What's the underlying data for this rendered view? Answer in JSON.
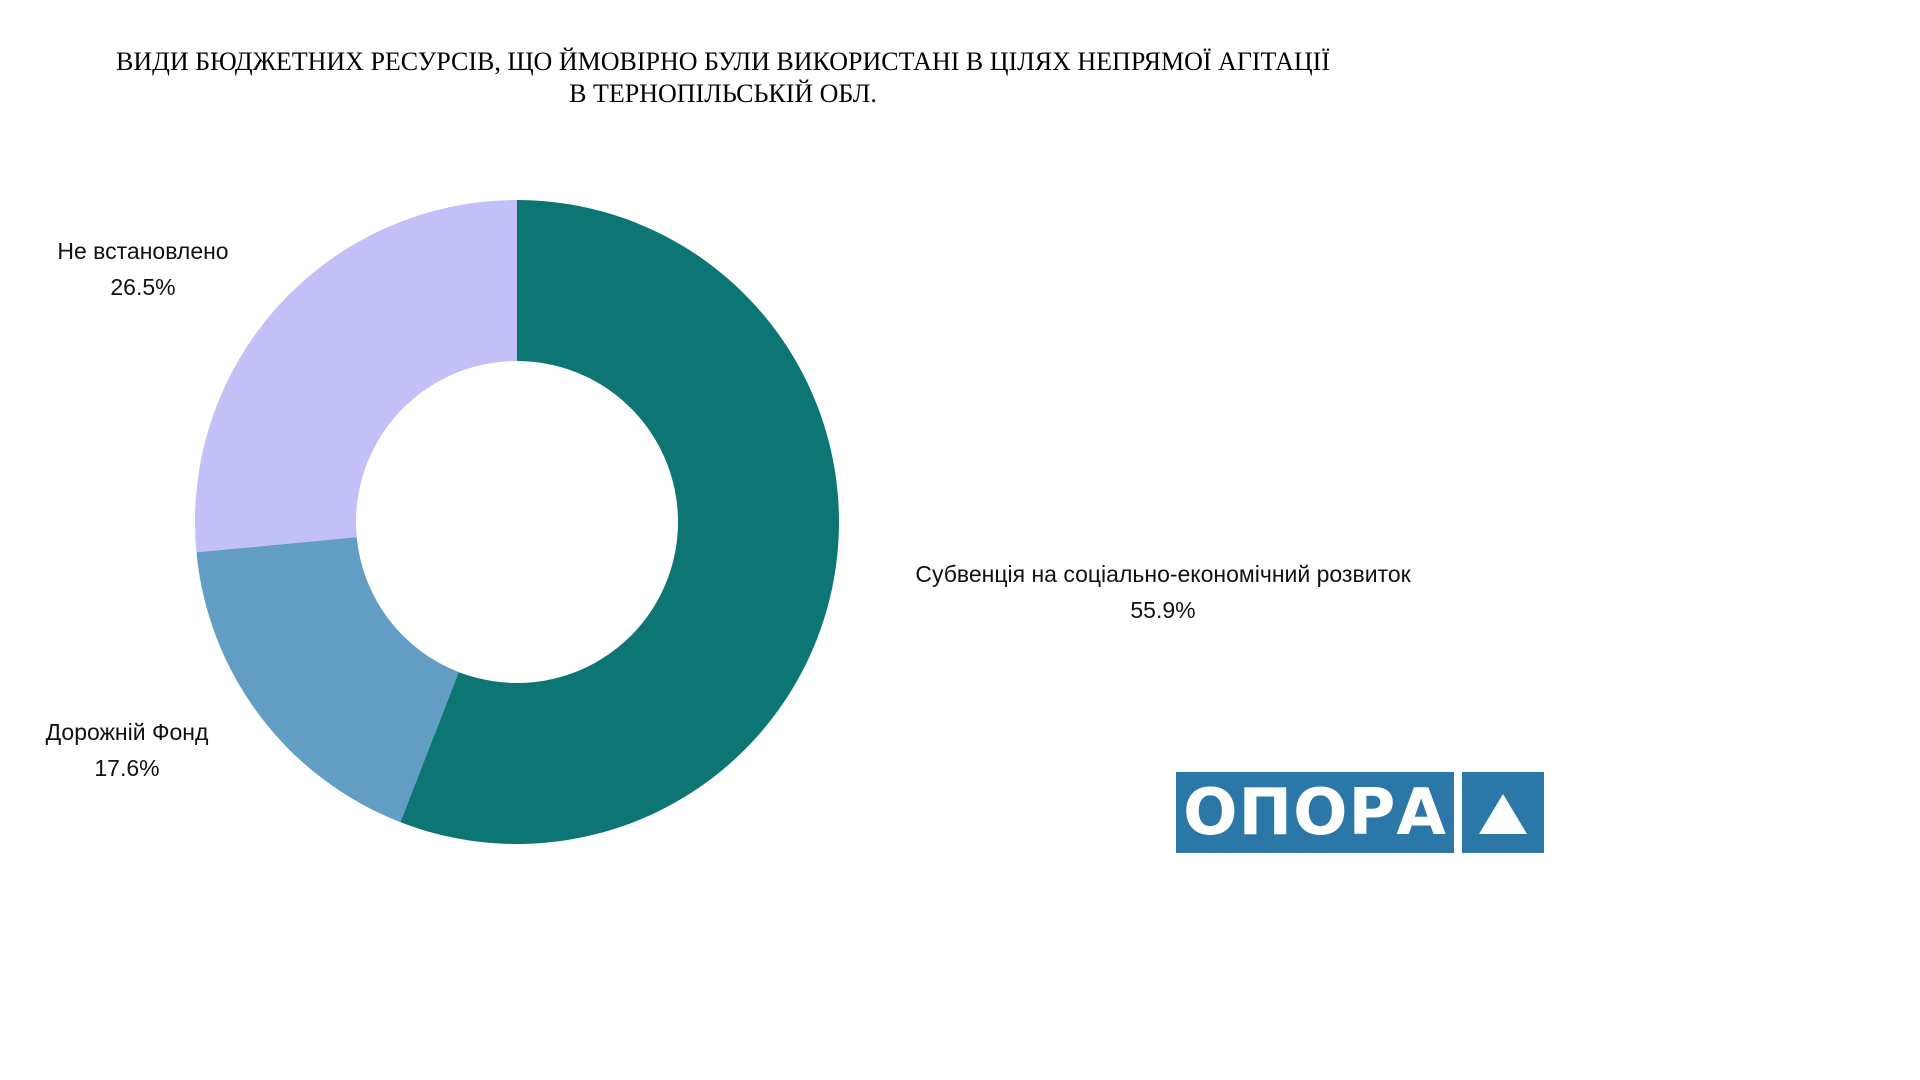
{
  "chart_data": {
    "type": "pie",
    "variant": "donut",
    "title_lines": [
      "ВИДИ БЮДЖЕТНИХ РЕСУРСІВ, ЩО ЙМОВІРНО БУЛИ ВИКОРИСТАНІ В ЦІЛЯХ НЕПРЯМОЇ АГІТАЦІЇ",
      "В ТЕРНОПІЛЬСЬКІЙ ОБЛ."
    ],
    "slices": [
      {
        "label": "Субвенція на соціально-економічний розвиток",
        "value": 55.9,
        "display": "55.9%",
        "color": "#0e7575"
      },
      {
        "label": "Дорожній Фонд",
        "value": 17.6,
        "display": "17.6%",
        "color": "#629ec4"
      },
      {
        "label": "Не встановлено",
        "value": 26.5,
        "display": "26.5%",
        "color": "#c3bff7"
      }
    ],
    "start_angle": "top",
    "direction": "clockwise",
    "legend": "none",
    "data_labels": "outside"
  },
  "logo": {
    "text": "ОПОРА",
    "mark": "triangle-icon",
    "color": "#2b78a8"
  }
}
